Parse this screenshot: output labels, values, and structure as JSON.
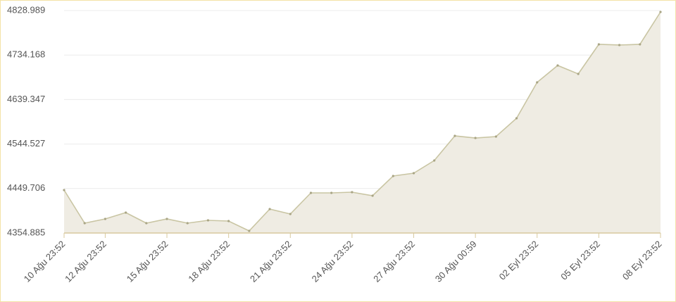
{
  "chart_data": {
    "type": "area",
    "categories": [
      "10 Ağu 23:52",
      null,
      "12 Ağu 23:52",
      null,
      null,
      "15 Ağu 23:52",
      null,
      null,
      "18 Ağu 23:52",
      null,
      null,
      "21 Ağu 23:52",
      null,
      null,
      "24 Ağu 23:52",
      null,
      null,
      "27 Ağu 23:52",
      null,
      null,
      "30 Ağu 00:59",
      null,
      null,
      "02 Eyl 23:52",
      null,
      null,
      "05 Eyl 23:52",
      null,
      null,
      "08 Eyl 23:52"
    ],
    "values": [
      4446.4,
      4375.9,
      4384.9,
      4398.4,
      4375.9,
      4384.9,
      4375.9,
      4381.9,
      4380.4,
      4359.4,
      4405.9,
      4395.4,
      4440.4,
      4440.4,
      4441.9,
      4434.4,
      4476.4,
      4482.4,
      4509.4,
      4561.9,
      4557.4,
      4560.4,
      4599.4,
      4676.0,
      4712.0,
      4694.0,
      4757.0,
      4755.5,
      4757.0,
      4826.0
    ],
    "color": "#c9c5a3",
    "fill": "#efece3",
    "ylim": [
      4354.885,
      4828.989
    ],
    "yticks": [
      4354.885,
      4449.706,
      4544.527,
      4639.347,
      4734.168,
      4828.989
    ],
    "grid": true
  }
}
